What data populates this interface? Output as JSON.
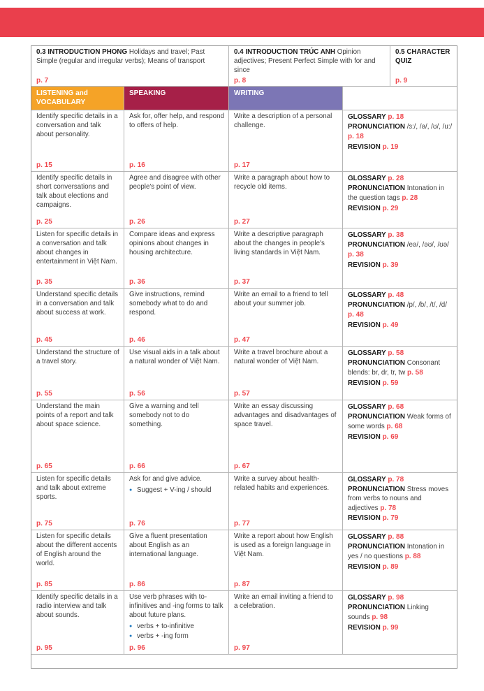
{
  "banner": {
    "color": "#ea3f4c"
  },
  "accent_colors": {
    "page_number_red": "#f04a50",
    "bullet_blue": "#1f78be"
  },
  "intro": [
    {
      "bold": "0.3 INTRODUCTION PHONG",
      "text": "Holidays and travel; Past Simple (regular and irregular verbs); Means of transport",
      "page": "p. 7"
    },
    {
      "bold": "0.4 INTRODUCTION TRÚC ANH",
      "text": "Opinion adjectives; Present Perfect Simple with for and since",
      "page": "p. 8"
    },
    {
      "bold": "0.5 CHARACTER QUIZ",
      "text": "",
      "page": "p. 9"
    }
  ],
  "column_headers": [
    {
      "label": "LISTENING and VOCABULARY",
      "color": "#f5a327"
    },
    {
      "label": "SPEAKING",
      "color": "#a62048"
    },
    {
      "label": "WRITING",
      "color": "#7c76b5"
    },
    {
      "label": "",
      "color": "#ffffff"
    }
  ],
  "rows": [
    {
      "listening": {
        "text": "Identify specific details in a conversation and talk about personality.",
        "page": "p. 15"
      },
      "speaking": {
        "text": "Ask for, offer help, and respond to offers of help.",
        "bullets": [],
        "page": "p. 16"
      },
      "writing": {
        "text": "Write a description of a personal challenge.",
        "page": "p. 17"
      },
      "extras": [
        {
          "label": "GLOSSARY",
          "text": "",
          "page": "p. 18"
        },
        {
          "label": "PRONUNCIATION",
          "text": "/ɜ:/, /ə/, /ʊ/, /u:/",
          "page": "p. 18"
        },
        {
          "label": "REVISION",
          "text": "",
          "page": "p. 19"
        }
      ]
    },
    {
      "listening": {
        "text": "Identify specific details in short conversations and talk about elections and campaigns.",
        "page": "p. 25"
      },
      "speaking": {
        "text": "Agree and disagree with other people's point of view.",
        "bullets": [],
        "page": "p. 26"
      },
      "writing": {
        "text": "Write a paragraph about how to recycle old items.",
        "page": "p. 27"
      },
      "extras": [
        {
          "label": "GLOSSARY",
          "text": "",
          "page": "p. 28"
        },
        {
          "label": "PRONUNCIATION",
          "text": "Intonation in the question tags",
          "page": "p. 28"
        },
        {
          "label": "REVISION",
          "text": "",
          "page": "p. 29"
        }
      ]
    },
    {
      "listening": {
        "text": "Listen for specific details in a conversation and talk about changes in entertainment in Việt Nam.",
        "page": "p. 35"
      },
      "speaking": {
        "text": "Compare ideas and express opinions about changes in housing architecture.",
        "bullets": [],
        "page": "p. 36"
      },
      "writing": {
        "text": "Write a descriptive paragraph about the changes in people's living standards in Việt Nam.",
        "page": "p. 37"
      },
      "extras": [
        {
          "label": "GLOSSARY",
          "text": "",
          "page": "p. 38"
        },
        {
          "label": "PRONUNCIATION",
          "text": "/eə/, /əʊ/, /ʊə/",
          "page": "p. 38"
        },
        {
          "label": "REVISION",
          "text": "",
          "page": "p. 39"
        }
      ]
    },
    {
      "listening": {
        "text": "Understand specific details in a conversation and talk about success at work.",
        "page": "p. 45"
      },
      "speaking": {
        "text": "Give instructions, remind somebody what to do and respond.",
        "bullets": [],
        "page": "p. 46"
      },
      "writing": {
        "text": "Write an email to a friend to tell about your summer job.",
        "page": "p. 47"
      },
      "extras": [
        {
          "label": "GLOSSARY",
          "text": "",
          "page": "p. 48"
        },
        {
          "label": "PRONUNCIATION",
          "text": "/p/, /b/, /t/, /d/",
          "page": "p. 48"
        },
        {
          "label": "REVISION",
          "text": "",
          "page": "p. 49"
        }
      ]
    },
    {
      "listening": {
        "text": "Understand the structure of a travel story.",
        "page": "p. 55"
      },
      "speaking": {
        "text": "Use visual aids in a talk about a natural wonder of Việt Nam.",
        "bullets": [],
        "page": "p. 56"
      },
      "writing": {
        "text": "Write a travel brochure about a natural wonder of Việt Nam.",
        "page": "p. 57"
      },
      "extras": [
        {
          "label": "GLOSSARY",
          "text": "",
          "page": "p. 58"
        },
        {
          "label": "PRONUNCIATION",
          "text": "Consonant blends: br, dr, tr, tw",
          "page": "p. 58"
        },
        {
          "label": "REVISION",
          "text": "",
          "page": "p. 59"
        }
      ]
    },
    {
      "listening": {
        "text": "Understand the main points of a report and talk about space science.",
        "page": "p. 65"
      },
      "speaking": {
        "text": "Give a warning and tell somebody not to do something.",
        "bullets": [],
        "page": "p. 66"
      },
      "writing": {
        "text": "Write an essay discussing advantages and disadvantages of space travel.",
        "page": "p. 67"
      },
      "extras": [
        {
          "label": "GLOSSARY",
          "text": "",
          "page": "p. 68"
        },
        {
          "label": "PRONUNCIATION",
          "text": "Weak forms of some words",
          "page": "p. 68"
        },
        {
          "label": "REVISION",
          "text": "",
          "page": "p. 69"
        }
      ]
    },
    {
      "listening": {
        "text": "Listen for specific details and talk about extreme sports.",
        "page": "p. 75"
      },
      "speaking": {
        "text": "Ask for and give advice.",
        "bullets": [
          "Suggest + V-ing / should"
        ],
        "page": "p. 76"
      },
      "writing": {
        "text": "Write a survey about health-related habits and experiences.",
        "page": "p. 77"
      },
      "extras": [
        {
          "label": "GLOSSARY",
          "text": "",
          "page": "p. 78"
        },
        {
          "label": "PRONUNCIATION",
          "text": "Stress moves from verbs to nouns and adjectives",
          "page": "p. 78"
        },
        {
          "label": "REVISION",
          "text": "",
          "page": "p. 79"
        }
      ]
    },
    {
      "listening": {
        "text": "Listen for specific details about the different accents of English around the world.",
        "page": "p. 85"
      },
      "speaking": {
        "text": "Give a fluent presentation about English as an international language.",
        "bullets": [],
        "page": "p. 86"
      },
      "writing": {
        "text": "Write a report about how English is used as a foreign language in Việt Nam.",
        "page": "p. 87"
      },
      "extras": [
        {
          "label": "GLOSSARY",
          "text": "",
          "page": "p. 88"
        },
        {
          "label": "PRONUNCIATION",
          "text": "Intonation in yes / no questions",
          "page": "p. 88"
        },
        {
          "label": "REVISION",
          "text": "",
          "page": "p. 89"
        }
      ]
    },
    {
      "listening": {
        "text": "Identify specific details in a radio interview and talk about sounds.",
        "page": "p. 95"
      },
      "speaking": {
        "text": "Use verb phrases with to-infinitives and -ing forms to talk about future plans.",
        "bullets": [
          "verbs + to-infinitive",
          "verbs + -ing form"
        ],
        "page": "p. 96"
      },
      "writing": {
        "text": "Write an email inviting a friend to a celebration.",
        "page": "p. 97"
      },
      "extras": [
        {
          "label": "GLOSSARY",
          "text": "",
          "page": "p. 98"
        },
        {
          "label": "PRONUNCIATION",
          "text": "Linking sounds",
          "page": "p. 98"
        },
        {
          "label": "REVISION",
          "text": "",
          "page": "p. 99"
        }
      ]
    }
  ]
}
